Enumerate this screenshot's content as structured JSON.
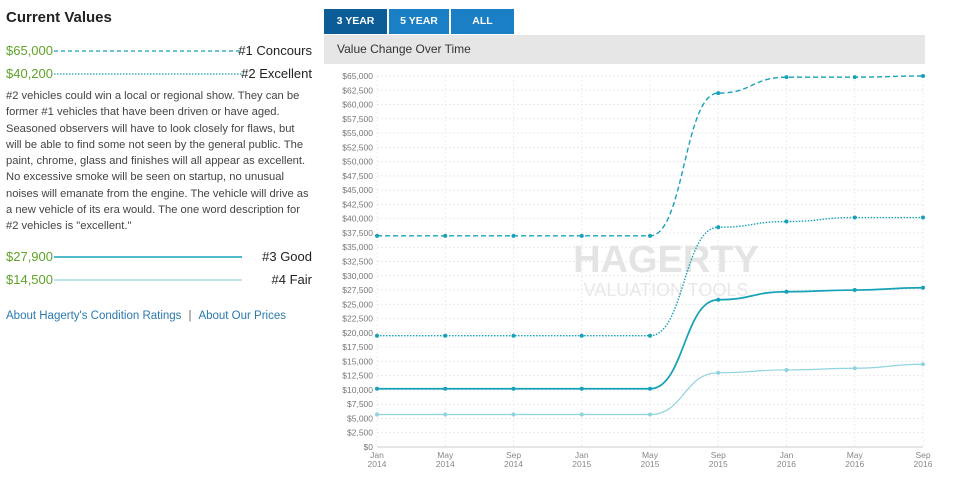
{
  "left_panel": {
    "title": "Current Values",
    "conditions": [
      {
        "price": "$65,000",
        "label": "#1 Concours",
        "dash": "dashed"
      },
      {
        "price": "$40,200",
        "label": "#2 Excellent",
        "dash": "dotted"
      },
      {
        "price": "$27,900",
        "label": "#3 Good",
        "dash": "solid"
      },
      {
        "price": "$14,500",
        "label": "#4 Fair",
        "dash": "thin"
      }
    ],
    "description": "#2 vehicles could win a local or regional show. They can be former #1 vehicles that have been driven or have aged. Seasoned observers will have to look closely for flaws, but will be able to find some not seen by the general public. The paint, chrome, glass and finishes will all appear as excellent. No excessive smoke will be seen on startup, no unusual noises will emanate from the engine. The vehicle will drive as a new vehicle of its era would. The one word description for #2 vehicles is \"excellent.\"",
    "links": {
      "ratings": "About Hagerty's Condition Ratings",
      "separator": "|",
      "prices": "About Our Prices"
    }
  },
  "tabs": [
    {
      "label": "3 YEAR",
      "active": true
    },
    {
      "label": "5 YEAR",
      "active": false
    },
    {
      "label": "ALL",
      "active": false
    }
  ],
  "chart_header": "Value Change Over Time",
  "watermark": {
    "line1": "HAGERTY",
    "line2": "VALUATION TOOLS"
  },
  "colors": {
    "series": "#16a2b8",
    "series_light": "#8fd3de",
    "price": "#5fa32a",
    "tab": "#1a7fc4",
    "tab_active": "#0b5c97",
    "link": "#2a7ab0"
  },
  "chart_data": {
    "type": "line",
    "title": "Value Change Over Time",
    "ylim": [
      0,
      65000
    ],
    "ytick_step": 2500,
    "ytick_labels": [
      "$0",
      "$2,500",
      "$5,000",
      "$7,500",
      "$10,000",
      "$12,500",
      "$15,000",
      "$17,500",
      "$20,000",
      "$22,500",
      "$25,000",
      "$27,500",
      "$30,000",
      "$32,500",
      "$35,000",
      "$37,500",
      "$40,000",
      "$42,500",
      "$45,000",
      "$47,500",
      "$50,000",
      "$52,500",
      "$55,000",
      "$57,500",
      "$60,000",
      "$62,500",
      "$65,000"
    ],
    "xlim": [
      "2014-01",
      "2016-09"
    ],
    "xtick_labels": [
      {
        "m": "Jan",
        "y": "2014"
      },
      {
        "m": "May",
        "y": "2014"
      },
      {
        "m": "Sep",
        "y": "2014"
      },
      {
        "m": "Jan",
        "y": "2015"
      },
      {
        "m": "May",
        "y": "2015"
      },
      {
        "m": "Sep",
        "y": "2015"
      },
      {
        "m": "Jan",
        "y": "2016"
      },
      {
        "m": "May",
        "y": "2016"
      },
      {
        "m": "Sep",
        "y": "2016"
      }
    ],
    "grid": true,
    "series": [
      {
        "name": "#1 Concours",
        "style": "dashed",
        "x": [
          "2014-01",
          "2014-05",
          "2014-09",
          "2015-01",
          "2015-05",
          "2015-09",
          "2016-01",
          "2016-05",
          "2016-09"
        ],
        "values": [
          37000,
          37000,
          37000,
          37000,
          37000,
          62000,
          64800,
          64800,
          65000
        ]
      },
      {
        "name": "#2 Excellent",
        "style": "dotted",
        "x": [
          "2014-01",
          "2014-05",
          "2014-09",
          "2015-01",
          "2015-05",
          "2015-09",
          "2016-01",
          "2016-05",
          "2016-09"
        ],
        "values": [
          19500,
          19500,
          19500,
          19500,
          19500,
          38500,
          39500,
          40200,
          40200
        ]
      },
      {
        "name": "#3 Good",
        "style": "solid",
        "x": [
          "2014-01",
          "2014-05",
          "2014-09",
          "2015-01",
          "2015-05",
          "2015-09",
          "2016-01",
          "2016-05",
          "2016-09"
        ],
        "values": [
          10200,
          10200,
          10200,
          10200,
          10200,
          25800,
          27200,
          27500,
          27900
        ]
      },
      {
        "name": "#4 Fair",
        "style": "thin",
        "x": [
          "2014-01",
          "2014-05",
          "2014-09",
          "2015-01",
          "2015-05",
          "2015-09",
          "2016-01",
          "2016-05",
          "2016-09"
        ],
        "values": [
          5700,
          5700,
          5700,
          5700,
          5700,
          13000,
          13500,
          13800,
          14500
        ]
      }
    ]
  }
}
